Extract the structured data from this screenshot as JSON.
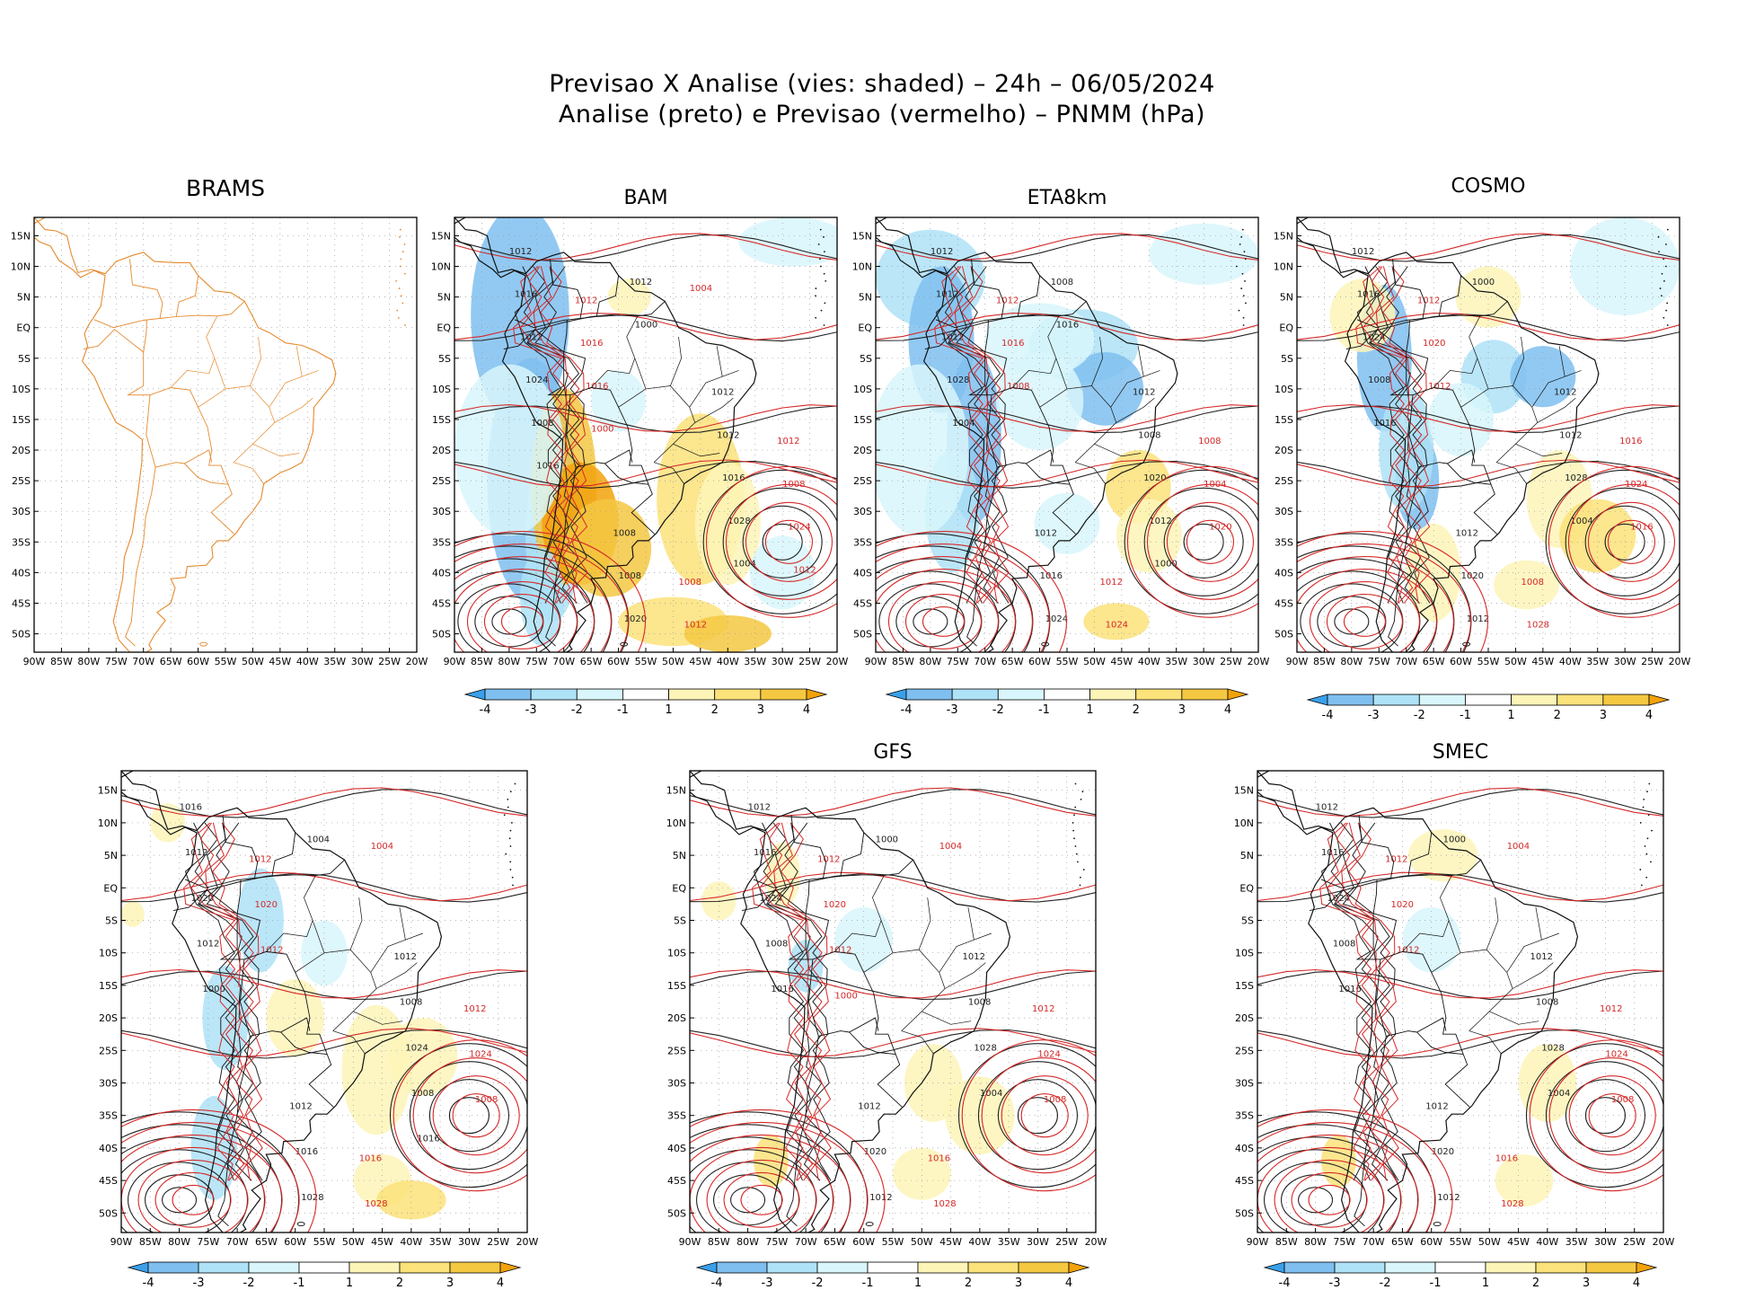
{
  "title": {
    "line1": "Previsao X Analise (vies: shaded) – 24h – 06/05/2024",
    "line2": "Analise (preto) e Previsao (vermelho) – PNMM (hPa)"
  },
  "colors": {
    "analysis_contour": "#222222",
    "forecast_contour": "#d62828",
    "map_outline": "#e58a2e",
    "bias_scale": [
      "#3aa0ea",
      "#7fbff0",
      "#aee2f7",
      "#d8f6fb",
      "#ffffff",
      "#fdf4b8",
      "#fbe27a",
      "#f5c842",
      "#f2a20a"
    ]
  },
  "chart_data": [
    {
      "type": "heatmap",
      "title": "BRAMS",
      "x_ticks": [
        "90W",
        "85W",
        "80W",
        "75W",
        "70W",
        "65W",
        "60W",
        "55W",
        "50W",
        "45W",
        "40W",
        "35W",
        "30W",
        "25W",
        "20W"
      ],
      "y_ticks": [
        "15N",
        "10N",
        "5N",
        "EQ",
        "5S",
        "10S",
        "15S",
        "20S",
        "25S",
        "30S",
        "35S",
        "40S",
        "45S",
        "50S"
      ],
      "colorbar": false
    },
    {
      "type": "heatmap",
      "title": "BAM",
      "x_ticks": [
        "90W",
        "85W",
        "80W",
        "75W",
        "70W",
        "65W",
        "60W",
        "55W",
        "50W",
        "45W",
        "40W",
        "35W",
        "30W",
        "25W",
        "20W"
      ],
      "y_ticks": [
        "15N",
        "10N",
        "5N",
        "EQ",
        "5S",
        "10S",
        "15S",
        "20S",
        "25S",
        "30S",
        "35S",
        "40S",
        "45S",
        "50S"
      ],
      "colorbar": true,
      "colorbar_labels": [
        "-4",
        "-3",
        "-2",
        "-1",
        "1",
        "2",
        "3",
        "4"
      ],
      "analysis_labels": [
        "1012",
        "1012",
        "1008",
        "1016",
        "1012",
        "1008",
        "1012",
        "1016",
        "1020",
        "1024",
        "1028",
        "1012",
        "1008",
        "1004",
        "1000",
        "1016"
      ],
      "forecast_labels": [
        "1012",
        "1012",
        "1008",
        "1016",
        "1008",
        "1012",
        "1016",
        "1024",
        "1004",
        "1000",
        "1012"
      ]
    },
    {
      "type": "heatmap",
      "title": "ETA8km",
      "x_ticks": [
        "90W",
        "85W",
        "80W",
        "75W",
        "70W",
        "65W",
        "60W",
        "55W",
        "50W",
        "45W",
        "40W",
        "35W",
        "30W",
        "25W",
        "20W"
      ],
      "y_ticks": [
        "15N",
        "10N",
        "5N",
        "EQ",
        "5S",
        "10S",
        "15S",
        "20S",
        "25S",
        "30S",
        "35S",
        "40S",
        "45S",
        "50S"
      ],
      "colorbar": true,
      "colorbar_labels": [
        "-4",
        "-3",
        "-2",
        "-1",
        "1",
        "2",
        "3",
        "4"
      ],
      "analysis_labels": [
        "1012",
        "1012",
        "1012",
        "1012",
        "1008",
        "1016",
        "1012",
        "1020",
        "1024",
        "1028",
        "1012",
        "1008",
        "1004",
        "1000",
        "1016"
      ],
      "forecast_labels": [
        "1012",
        "1008",
        "1012",
        "1016",
        "1004",
        "1024",
        "1008",
        "1020"
      ]
    },
    {
      "type": "heatmap",
      "title": "COSMO",
      "x_ticks": [
        "90W",
        "85W",
        "80W",
        "75W",
        "70W",
        "65W",
        "60W",
        "55W",
        "50W",
        "45W",
        "40W",
        "35W",
        "30W",
        "25W",
        "20W"
      ],
      "y_ticks": [
        "15N",
        "10N",
        "5N",
        "EQ",
        "5S",
        "10S",
        "15S",
        "20S",
        "25S",
        "30S",
        "35S",
        "40S",
        "45S",
        "50S"
      ],
      "colorbar": true,
      "colorbar_labels": [
        "-4",
        "-3",
        "-2",
        "-1",
        "1",
        "2",
        "3",
        "4"
      ],
      "analysis_labels": [
        "1012",
        "1012",
        "1012",
        "1016",
        "1012",
        "1020",
        "1024",
        "1028",
        "1012",
        "1008",
        "1004",
        "1000",
        "1016"
      ],
      "forecast_labels": [
        "1012",
        "1016",
        "1008",
        "1020",
        "1024",
        "1028",
        "1012",
        "1016"
      ]
    },
    {
      "type": "heatmap",
      "title": "",
      "x_ticks": [
        "90W",
        "85W",
        "80W",
        "75W",
        "70W",
        "65W",
        "60W",
        "55W",
        "50W",
        "45W",
        "40W",
        "35W",
        "30W",
        "25W",
        "20W"
      ],
      "y_ticks": [
        "15N",
        "10N",
        "5N",
        "EQ",
        "5S",
        "10S",
        "15S",
        "20S",
        "25S",
        "30S",
        "35S",
        "40S",
        "45S",
        "50S"
      ],
      "colorbar": true,
      "colorbar_labels": [
        "-4",
        "-3",
        "-2",
        "-1",
        "1",
        "2",
        "3",
        "4"
      ],
      "analysis_labels": [
        "1016",
        "1012",
        "1012",
        "1012",
        "1008",
        "1016",
        "1020",
        "1024",
        "1028",
        "1012",
        "1008",
        "1004",
        "1000",
        "1016"
      ],
      "forecast_labels": [
        "1012",
        "1012",
        "1016",
        "1020",
        "1024",
        "1028",
        "1012",
        "1008",
        "1004"
      ]
    },
    {
      "type": "heatmap",
      "title": "GFS",
      "x_ticks": [
        "90W",
        "85W",
        "80W",
        "75W",
        "70W",
        "65W",
        "60W",
        "55W",
        "50W",
        "45W",
        "40W",
        "35W",
        "30W",
        "25W",
        "20W"
      ],
      "y_ticks": [
        "15N",
        "10N",
        "5N",
        "EQ",
        "5S",
        "10S",
        "15S",
        "20S",
        "25S",
        "30S",
        "35S",
        "40S",
        "45S",
        "50S"
      ],
      "colorbar": true,
      "colorbar_labels": [
        "-4",
        "-3",
        "-2",
        "-1",
        "1",
        "2",
        "3",
        "4"
      ],
      "analysis_labels": [
        "1012",
        "1012",
        "1012",
        "1016",
        "1008",
        "1020",
        "1024",
        "1028",
        "1012",
        "1008",
        "1004",
        "1000",
        "1016"
      ],
      "forecast_labels": [
        "1012",
        "1012",
        "1016",
        "1020",
        "1024",
        "1028",
        "1012",
        "1008",
        "1004",
        "1000"
      ]
    },
    {
      "type": "heatmap",
      "title": "SMEC",
      "x_ticks": [
        "90W",
        "85W",
        "80W",
        "75W",
        "70W",
        "65W",
        "60W",
        "55W",
        "50W",
        "45W",
        "40W",
        "35W",
        "30W",
        "25W",
        "20W"
      ],
      "y_ticks": [
        "15N",
        "10N",
        "5N",
        "EQ",
        "5S",
        "10S",
        "15S",
        "20S",
        "25S",
        "30S",
        "35S",
        "40S",
        "45S",
        "50S"
      ],
      "colorbar": true,
      "colorbar_labels": [
        "-4",
        "-3",
        "-2",
        "-1",
        "1",
        "2",
        "3",
        "4"
      ],
      "analysis_labels": [
        "1012",
        "1012",
        "1012",
        "1016",
        "1008",
        "1020",
        "1024",
        "1028",
        "1012",
        "1008",
        "1004",
        "1000",
        "1016"
      ],
      "forecast_labels": [
        "1012",
        "1012",
        "1016",
        "1020",
        "1024",
        "1028",
        "1012",
        "1008",
        "1004"
      ]
    }
  ]
}
